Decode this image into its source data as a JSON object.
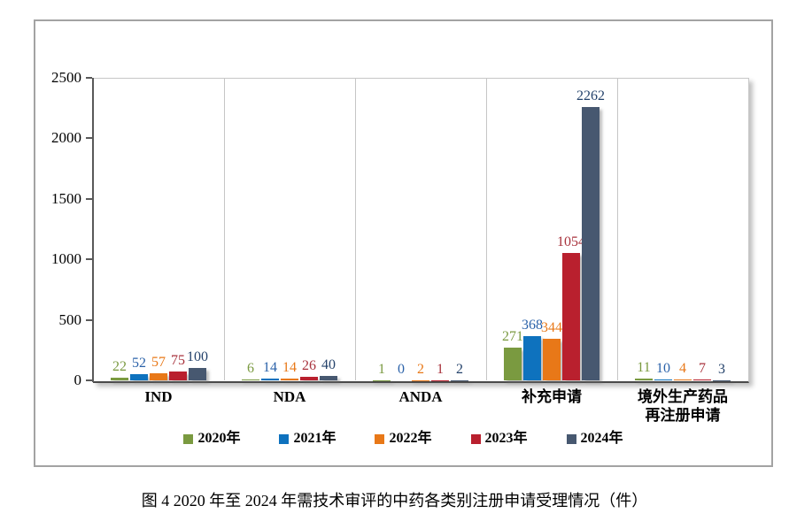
{
  "figure_caption": "图 4  2020 年至 2024 年需技术审评的中药各类别注册申请受理情况（件）",
  "chart_data": {
    "type": "bar",
    "title": "",
    "xlabel": "",
    "ylabel": "",
    "categories": [
      "IND",
      "NDA",
      "ANDA",
      "补充申请",
      "境外生产药品\n再注册申请"
    ],
    "series": [
      {
        "name": "2020年",
        "color": "#7a9a40",
        "label_color": "#7a9a40",
        "values": [
          22,
          6,
          1,
          271,
          11
        ]
      },
      {
        "name": "2021年",
        "color": "#0e72be",
        "label_color": "#2b62a9",
        "values": [
          52,
          14,
          0,
          368,
          10
        ]
      },
      {
        "name": "2022年",
        "color": "#e87818",
        "label_color": "#e87818",
        "values": [
          57,
          14,
          2,
          344,
          4
        ]
      },
      {
        "name": "2023年",
        "color": "#b9202e",
        "label_color": "#a8323c",
        "values": [
          75,
          26,
          1,
          1054,
          7
        ]
      },
      {
        "name": "2024年",
        "color": "#475870",
        "label_color": "#24426b",
        "values": [
          100,
          40,
          2,
          2262,
          3
        ]
      }
    ],
    "ylim": [
      0,
      2500
    ],
    "yticks": [
      0,
      500,
      1000,
      1500,
      2000,
      2500
    ],
    "grid": "vertical-category-separators",
    "legend_position": "bottom",
    "data_labels": "outside-end, colored per series"
  },
  "colors": {
    "outer_border": "#a3a3a3",
    "axis": "#595959",
    "baseline": "#4a4a4a",
    "separator": "#c6c6c6",
    "background": "#ffffff"
  }
}
